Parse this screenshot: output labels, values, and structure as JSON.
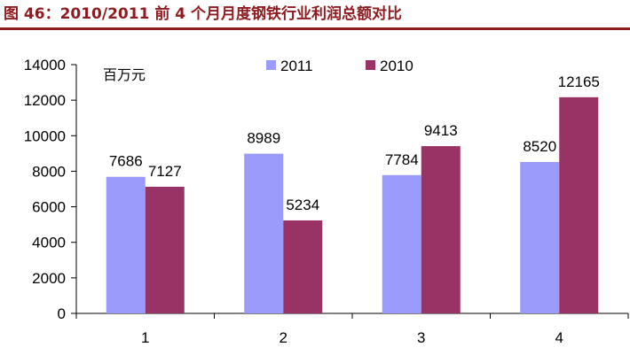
{
  "figure": {
    "title": "图 46：2010/2011 前 4 个月月度钢铁行业利润总额对比",
    "accent_color": "#8e1b1f"
  },
  "chart_data": {
    "type": "bar",
    "categories": [
      "1",
      "2",
      "3",
      "4"
    ],
    "series": [
      {
        "name": "2011",
        "color": "#9b9bfb",
        "values": [
          7686,
          8989,
          7784,
          8520
        ]
      },
      {
        "name": "2010",
        "color": "#993366",
        "values": [
          7127,
          5234,
          9413,
          12165
        ]
      }
    ],
    "unit_label": "百万元",
    "ylim": [
      0,
      14000
    ],
    "yticks": [
      0,
      2000,
      4000,
      6000,
      8000,
      10000,
      12000,
      14000
    ],
    "grid": false,
    "legend_position": "top"
  }
}
